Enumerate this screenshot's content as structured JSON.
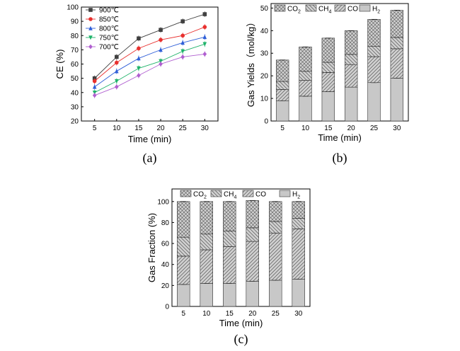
{
  "chart_data": [
    {
      "type": "line",
      "panel_label": "(a)",
      "xlabel": "Time (min)",
      "ylabel": "CE (%)",
      "x": [
        5,
        10,
        15,
        20,
        25,
        30
      ],
      "xlim": [
        2,
        33
      ],
      "ylim": [
        20,
        100
      ],
      "yticks": [
        20,
        30,
        40,
        50,
        60,
        70,
        80,
        90,
        100
      ],
      "legend_position": "top-left",
      "series": [
        {
          "name": "900℃",
          "marker": "square",
          "color": "#404040",
          "values": [
            50,
            65,
            78,
            84,
            90,
            95
          ]
        },
        {
          "name": "850℃",
          "marker": "circle",
          "color": "#e8302e",
          "values": [
            48,
            61,
            71,
            77,
            80,
            86
          ]
        },
        {
          "name": "800℃",
          "marker": "triangle-up",
          "color": "#2f5fd8",
          "values": [
            44,
            55,
            64,
            70,
            75,
            79
          ]
        },
        {
          "name": "750℃",
          "marker": "triangle-down",
          "color": "#1fb36a",
          "values": [
            40,
            48,
            57,
            62,
            69,
            74
          ]
        },
        {
          "name": "700℃",
          "marker": "diamond",
          "color": "#b05fd0",
          "values": [
            38,
            44,
            52,
            60,
            65,
            67
          ]
        }
      ]
    },
    {
      "type": "bar",
      "stacked": true,
      "panel_label": "(b)",
      "xlabel": "Time (min)",
      "ylabel": "Gas Yields（mol/kg）",
      "categories": [
        "5",
        "10",
        "15",
        "20",
        "25",
        "30"
      ],
      "ylim": [
        0,
        52
      ],
      "yticks": [
        0,
        10,
        20,
        30,
        40,
        50
      ],
      "legend_position": "top",
      "series": [
        {
          "name": "H2",
          "label_main": "H",
          "label_sub": "2",
          "pattern": "none",
          "values": [
            9,
            11,
            13,
            15,
            17,
            19
          ]
        },
        {
          "name": "CO",
          "label_main": "CO",
          "label_sub": "",
          "pattern": "diag-right",
          "values": [
            5,
            7,
            8.5,
            10,
            11.5,
            13
          ]
        },
        {
          "name": "CH4",
          "label_main": "CH",
          "label_sub": "4",
          "pattern": "diag-left",
          "values": [
            3.5,
            4,
            4.5,
            4.5,
            4.5,
            5
          ]
        },
        {
          "name": "CO2",
          "label_main": "CO",
          "label_sub": "2",
          "pattern": "cross",
          "values": [
            9.5,
            10.8,
            10.7,
            10.5,
            12,
            12
          ]
        }
      ]
    },
    {
      "type": "bar",
      "stacked": true,
      "panel_label": "(c)",
      "xlabel": "Time (min)",
      "ylabel": "Gas Fraction (%)",
      "categories": [
        "5",
        "10",
        "15",
        "20",
        "25",
        "30"
      ],
      "ylim": [
        0,
        112
      ],
      "yticks": [
        0,
        20,
        40,
        60,
        80,
        100
      ],
      "legend_position": "top",
      "series": [
        {
          "name": "H2",
          "label_main": "H",
          "label_sub": "2",
          "pattern": "none",
          "values": [
            21,
            22,
            22,
            24,
            25,
            26
          ]
        },
        {
          "name": "CO",
          "label_main": "CO",
          "label_sub": "",
          "pattern": "diag-right",
          "values": [
            27,
            32,
            35,
            38,
            45,
            48
          ]
        },
        {
          "name": "CH4",
          "label_main": "CH",
          "label_sub": "4",
          "pattern": "diag-left",
          "values": [
            18,
            15,
            15,
            13,
            11,
            10
          ]
        },
        {
          "name": "CO2",
          "label_main": "CO",
          "label_sub": "2",
          "pattern": "cross",
          "values": [
            34,
            31,
            28,
            26,
            19,
            16
          ]
        }
      ]
    }
  ]
}
